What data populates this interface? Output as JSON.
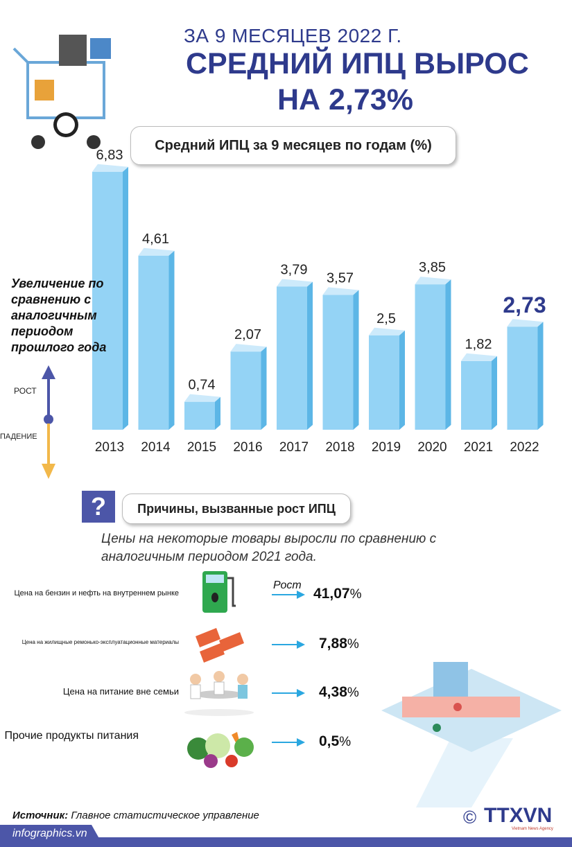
{
  "header": {
    "line1": "ЗА 9 МЕСЯЦЕВ 2022 Г.",
    "line2": "СРЕДНИЙ ИПЦ  ВЫРОС",
    "line3": "НА 2,73%"
  },
  "chart_data": {
    "type": "bar",
    "title": "Средний ИПЦ за 9 месяцев по годам (%)",
    "categories": [
      "2013",
      "2014",
      "2015",
      "2016",
      "2017",
      "2018",
      "2019",
      "2020",
      "2021",
      "2022"
    ],
    "values": [
      6.83,
      4.61,
      0.74,
      2.07,
      3.79,
      3.57,
      2.5,
      3.85,
      1.82,
      2.73
    ],
    "labels": [
      "6,83",
      "4,61",
      "0,74",
      "2,07",
      "3,79",
      "3,57",
      "2,5",
      "3,85",
      "1,82",
      "2,73"
    ],
    "ylim": [
      0,
      7
    ],
    "highlight": "2022",
    "colors": {
      "front": "#94d3f5",
      "side": "#5cb6e6",
      "top": "#cdeafb",
      "highlight_label": "#2e3a8c"
    }
  },
  "side_legend": {
    "text": "Увеличение по сравнению с аналогичным периодом прошлого года",
    "up": "РОСТ",
    "down": "ПАДЕНИЕ",
    "up_color": "#4c56a8",
    "down_color": "#f2b84a"
  },
  "reasons": {
    "icon": "?",
    "title": "Причины, вызванные рост ИПЦ",
    "intro": "Цены на некоторые товары выросли по сравнению с аналогичным периодом 2021 года.",
    "growth_label": "Рост",
    "items": [
      {
        "label": "Цена на бензин и нефть на внутреннем рынке",
        "value": "41,07",
        "unit": "%",
        "icon": "fuel-pump-icon"
      },
      {
        "label": "Цена на жилищные ремонько-эксплуатационные материалы",
        "value": "7,88",
        "unit": "%",
        "icon": "bricks-icon"
      },
      {
        "label": "Цена на питание вне семьи",
        "value": "4,38",
        "unit": "%",
        "icon": "dining-people-icon"
      },
      {
        "label": "Прочие продукты питания",
        "value": "0,5",
        "unit": "%",
        "icon": "vegetables-icon"
      }
    ]
  },
  "footer": {
    "source_label": "Источник:",
    "source": " Главное статистическое управление",
    "site": "infographics.vn",
    "logo": "TTXVN",
    "logo_sub": "Vietnam News Agency",
    "copyright": "©"
  }
}
